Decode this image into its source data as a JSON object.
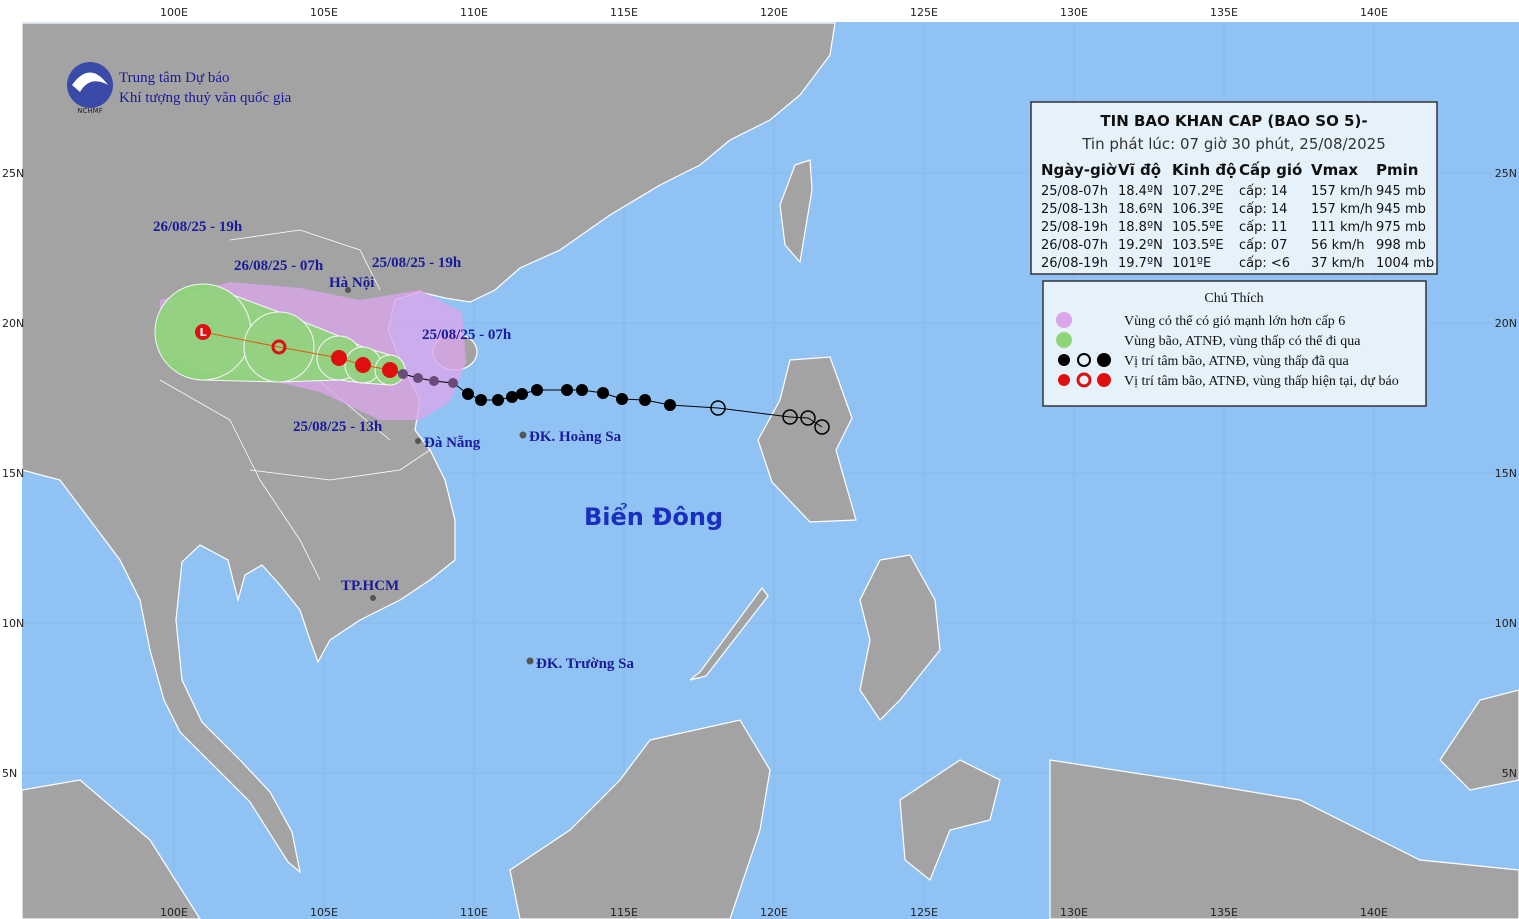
{
  "header": {
    "org_line1": "Trung tâm Dự báo",
    "org_line2": "Khí tượng thuỷ văn quốc gia",
    "logo_text": "NCHMF"
  },
  "axes": {
    "lon_ticks": [
      {
        "value": 100,
        "label": "100E"
      },
      {
        "value": 105,
        "label": "105E"
      },
      {
        "value": 110,
        "label": "110E"
      },
      {
        "value": 115,
        "label": "115E"
      },
      {
        "value": 120,
        "label": "120E"
      },
      {
        "value": 125,
        "label": "125E"
      },
      {
        "value": 130,
        "label": "130E"
      },
      {
        "value": 135,
        "label": "135E"
      },
      {
        "value": 140,
        "label": "140E"
      }
    ],
    "lat_ticks": [
      {
        "value": 25,
        "label": "25N"
      },
      {
        "value": 20,
        "label": "20N"
      },
      {
        "value": 15,
        "label": "15N"
      },
      {
        "value": 10,
        "label": "10N"
      },
      {
        "value": 5,
        "label": "5N"
      }
    ]
  },
  "bulletin": {
    "title": "TIN BAO KHAN CAP (BAO SO 5)-",
    "issued": "Tin phát lúc: 07 giờ 30 phút, 25/08/2025",
    "columns": [
      "Ngày-giờ",
      "Vĩ độ",
      "Kinh độ",
      "Cấp gió",
      "Vmax",
      "Pmin"
    ],
    "rows": [
      [
        "25/08-07h",
        "18.4ºN",
        "107.2ºE",
        "cấp: 14",
        "157 km/h",
        "945 mb"
      ],
      [
        "25/08-13h",
        "18.6ºN",
        "106.3ºE",
        "cấp: 14",
        "157 km/h",
        "945 mb"
      ],
      [
        "25/08-19h",
        "18.8ºN",
        "105.5ºE",
        "cấp: 11",
        "111 km/h",
        "975 mb"
      ],
      [
        "26/08-07h",
        "19.2ºN",
        "103.5ºE",
        "cấp: 07",
        "56 km/h",
        "998 mb"
      ],
      [
        "26/08-19h",
        "19.7ºN",
        "101ºE",
        "cấp: <6",
        "37 km/h",
        "1004 mb"
      ]
    ]
  },
  "legend": {
    "title": "Chú Thích",
    "items": [
      "Vùng có thể có gió mạnh lớn hơn cấp 6",
      "Vùng bão, ATNĐ, vùng thấp có thể đi qua",
      "Vị trí tâm bão, ATNĐ, vùng thấp đã qua",
      "Vị trí tâm bão, ATNĐ, vùng thấp hiện tại, dự báo"
    ]
  },
  "places": [
    "Hà Nội",
    "Đà Nẵng",
    "ĐK. Hoàng Sa",
    "TP.HCM",
    "ĐK. Trường Sa",
    "Biển Đông"
  ],
  "track_labels": [
    "26/08/25 - 19h",
    "26/08/25 - 07h",
    "25/08/25 - 19h",
    "25/08/25 - 07h",
    "25/08/25 - 13h"
  ]
}
